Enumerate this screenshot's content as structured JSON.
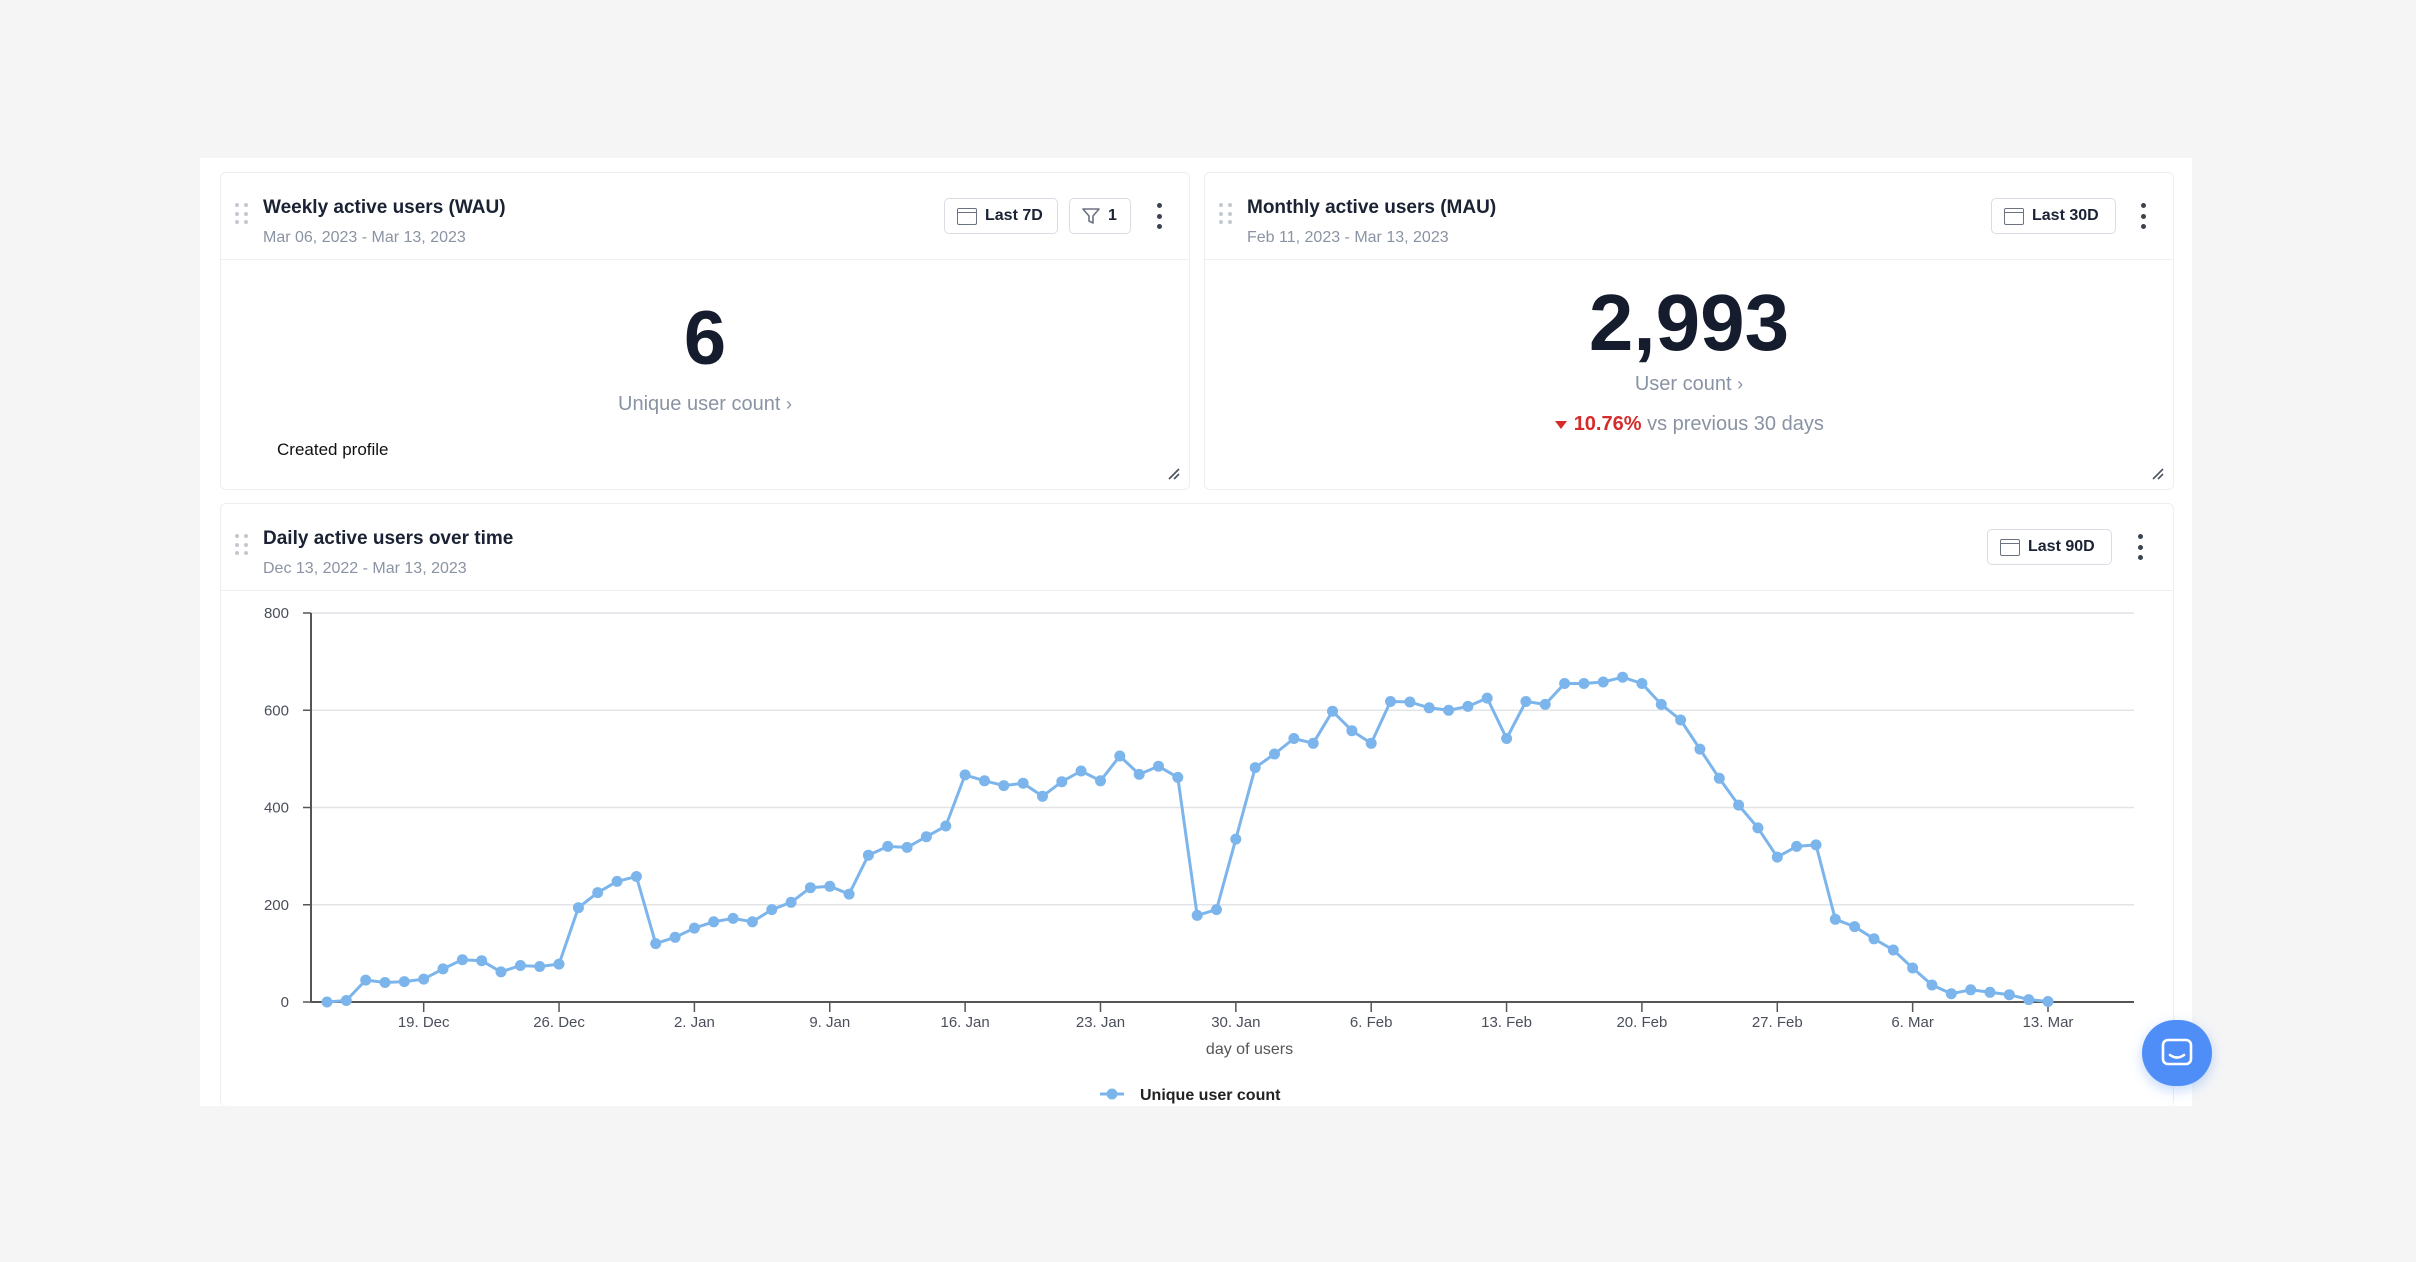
{
  "wau": {
    "title": "Weekly active users (WAU)",
    "date_range": "Mar 06, 2023 - Mar 13, 2023",
    "range_button": "Last 7D",
    "filter_count": "1",
    "value": "6",
    "metric_label": "Unique user count",
    "event_label": "Created profile"
  },
  "mau": {
    "title": "Monthly active users (MAU)",
    "date_range": "Feb 11, 2023 - Mar 13, 2023",
    "range_button": "Last 30D",
    "value": "2,993",
    "metric_label": "User count",
    "change_value": "10.76%",
    "change_text": "vs previous 30 days",
    "change_color": "#d62b2b"
  },
  "dau": {
    "title": "Daily active users over time",
    "date_range": "Dec 13, 2022 - Mar 13, 2023",
    "range_button": "Last 90D"
  },
  "chart_data": {
    "type": "line",
    "xlabel": "day of users",
    "ylabel": "",
    "ylim": [
      0,
      800
    ],
    "y_ticks": [
      "0",
      "200",
      "400",
      "600",
      "800"
    ],
    "x_tick_labels": [
      "19. Dec",
      "26. Dec",
      "2. Jan",
      "9. Jan",
      "16. Jan",
      "23. Jan",
      "30. Jan",
      "6. Feb",
      "13. Feb",
      "20. Feb",
      "27. Feb",
      "6. Mar",
      "13. Mar"
    ],
    "x_tick_dates": [
      "2022-12-19",
      "2022-12-26",
      "2023-01-02",
      "2023-01-09",
      "2023-01-16",
      "2023-01-23",
      "2023-01-30",
      "2023-02-06",
      "2023-02-13",
      "2023-02-20",
      "2023-02-27",
      "2023-03-06",
      "2023-03-13"
    ],
    "x_start": "2022-12-14",
    "x_end": "2023-03-13",
    "grid": true,
    "legend_position": "bottom",
    "series": [
      {
        "name": "Unique user count",
        "color": "#7cb5ec",
        "values": [
          0,
          3,
          45,
          40,
          42,
          47,
          68,
          87,
          85,
          62,
          75,
          73,
          78,
          194,
          225,
          248,
          258,
          120,
          133,
          152,
          165,
          172,
          165,
          190,
          205,
          235,
          238,
          222,
          302,
          320,
          318,
          340,
          362,
          467,
          455,
          445,
          450,
          423,
          453,
          475,
          455,
          506,
          468,
          485,
          462,
          178,
          190,
          335,
          482,
          510,
          542,
          532,
          598,
          558,
          532,
          618,
          617,
          605,
          600,
          608,
          625,
          542,
          618,
          612,
          655,
          655,
          658,
          668,
          655,
          612,
          580,
          520,
          460,
          405,
          358,
          298,
          320,
          323,
          170,
          155,
          130,
          107,
          70,
          35,
          17,
          25,
          20,
          15,
          5,
          1
        ]
      }
    ]
  },
  "support_button": {
    "icon": "chat-icon"
  }
}
